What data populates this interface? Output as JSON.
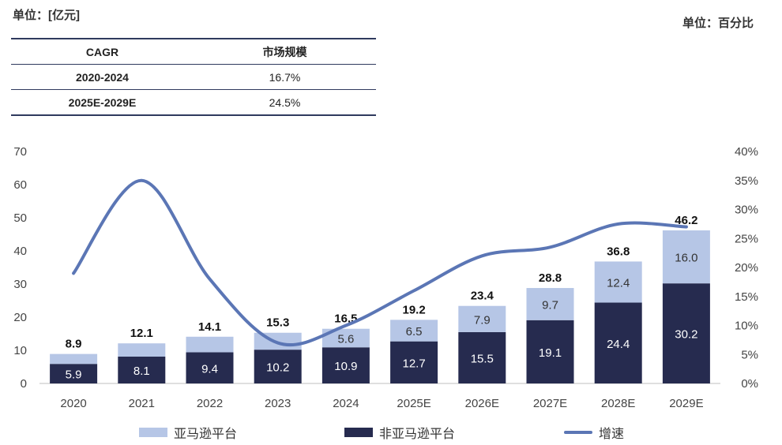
{
  "unit_left": "单位：[亿元]",
  "unit_right": "单位：百分比",
  "cagr_table": {
    "headers": [
      "CAGR",
      "市场规模"
    ],
    "rows": [
      {
        "period": "2020-2024",
        "value": "16.7%"
      },
      {
        "period": "2025E-2029E",
        "value": "24.5%"
      }
    ]
  },
  "chart_data": {
    "type": "bar",
    "stacked": true,
    "categories": [
      "2020",
      "2021",
      "2022",
      "2023",
      "2024",
      "2025E",
      "2026E",
      "2027E",
      "2028E",
      "2029E"
    ],
    "series": [
      {
        "name": "非亚马逊平台",
        "values": [
          5.9,
          8.1,
          9.4,
          10.2,
          10.9,
          12.7,
          15.5,
          19.1,
          24.4,
          30.2
        ],
        "color": "#262b4f",
        "label_color": "#ffffff"
      },
      {
        "name": "亚马逊平台",
        "values": [
          3.0,
          4.0,
          4.7,
          5.1,
          5.6,
          6.5,
          7.9,
          9.7,
          12.4,
          16.0
        ],
        "color": "#b6c6e6",
        "label_color": "#333333",
        "labels": [
          "",
          "",
          "",
          "",
          "5.6",
          "6.5",
          "7.9",
          "9.7",
          "12.4",
          "16.0"
        ]
      }
    ],
    "totals": [
      8.9,
      12.1,
      14.1,
      15.3,
      16.5,
      19.2,
      23.4,
      28.8,
      36.8,
      46.2
    ],
    "line_series": {
      "name": "增速",
      "axis": "right",
      "values": [
        19,
        35,
        18,
        7,
        10,
        16,
        22,
        23.5,
        27.5,
        27
      ],
      "color": "#5b76b5"
    },
    "ylim": [
      0,
      70
    ],
    "y_ticks": [
      "0",
      "10",
      "20",
      "30",
      "40",
      "50",
      "60",
      "70"
    ],
    "y2lim": [
      0,
      40
    ],
    "y2_ticks": [
      "0%",
      "5%",
      "10%",
      "15%",
      "20%",
      "25%",
      "30%",
      "35%",
      "40%"
    ]
  },
  "legend": [
    {
      "label": "亚马逊平台",
      "type": "bar",
      "color": "#b6c6e6"
    },
    {
      "label": "非亚马逊平台",
      "type": "bar",
      "color": "#262b4f"
    },
    {
      "label": "增速",
      "type": "line",
      "color": "#5b76b5"
    }
  ]
}
